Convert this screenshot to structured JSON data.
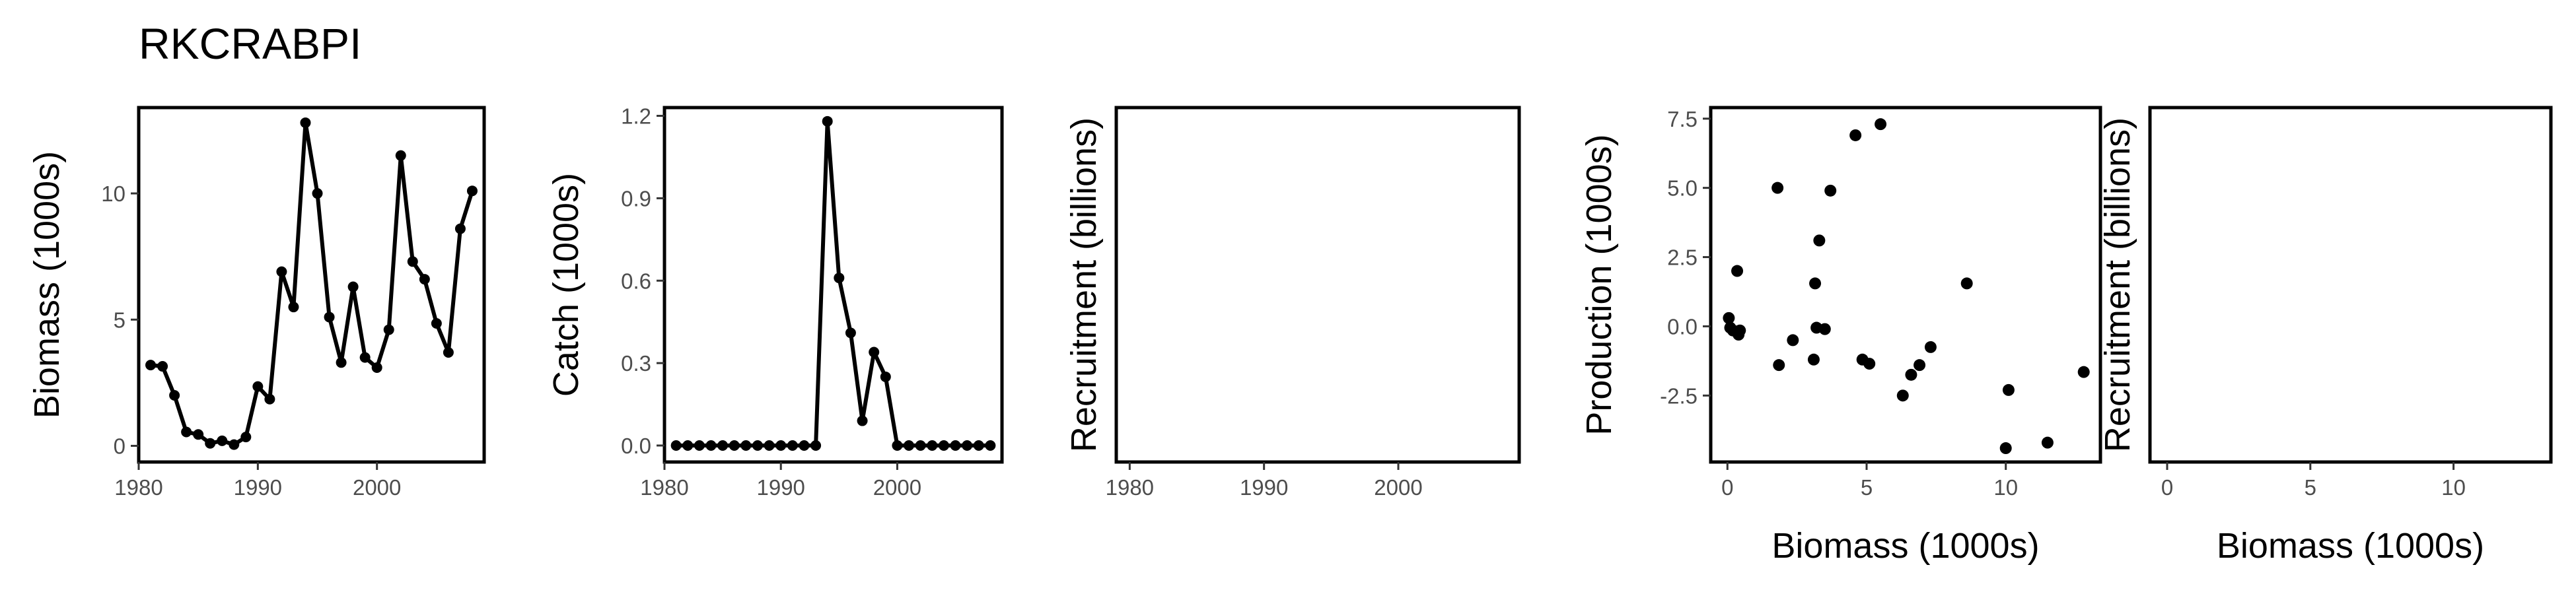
{
  "title": "RKCRABPI",
  "chart_data": [
    {
      "type": "line",
      "xlabel": "",
      "ylabel": "Biomass (1000s)",
      "xlim": [
        1980,
        2009
      ],
      "ylim": [
        -0.64,
        13.4
      ],
      "xticks": [
        1980,
        1990,
        2000
      ],
      "yticks": [
        0,
        5,
        10
      ],
      "x": [
        1981,
        1982,
        1983,
        1984,
        1985,
        1986,
        1987,
        1988,
        1989,
        1990,
        1991,
        1992,
        1993,
        1994,
        1995,
        1996,
        1997,
        1998,
        1999,
        2000,
        2001,
        2002,
        2003,
        2004,
        2005,
        2006,
        2007,
        2008
      ],
      "y": [
        3.2,
        3.15,
        2.0,
        0.55,
        0.45,
        0.1,
        0.2,
        0.05,
        0.35,
        2.35,
        1.85,
        6.9,
        5.5,
        12.8,
        10.0,
        5.1,
        3.3,
        6.3,
        3.5,
        3.1,
        4.6,
        11.5,
        7.3,
        6.6,
        4.85,
        3.7,
        8.6,
        10.1
      ],
      "markers": true
    },
    {
      "type": "line",
      "xlabel": "",
      "ylabel": "Catch (1000s)",
      "xlim": [
        1980,
        2009
      ],
      "ylim": [
        -0.06,
        1.23
      ],
      "xticks": [
        1980,
        1990,
        2000
      ],
      "yticks": [
        0.0,
        0.3,
        0.6,
        0.9,
        1.2
      ],
      "ytick_labels": [
        "0.0",
        "0.3",
        "0.6",
        "0.9",
        "1.2"
      ],
      "x": [
        1981,
        1982,
        1983,
        1984,
        1985,
        1986,
        1987,
        1988,
        1989,
        1990,
        1991,
        1992,
        1993,
        1994,
        1995,
        1996,
        1997,
        1998,
        1999,
        2000,
        2001,
        2002,
        2003,
        2004,
        2005,
        2006,
        2007,
        2008
      ],
      "y": [
        0,
        0,
        0,
        0,
        0,
        0,
        0,
        0,
        0,
        0,
        0,
        0,
        0,
        1.18,
        0.61,
        0.41,
        0.09,
        0.34,
        0.25,
        0,
        0,
        0,
        0,
        0,
        0,
        0,
        0,
        0
      ],
      "markers": true
    },
    {
      "type": "line",
      "xlabel": "",
      "ylabel": "Recruitment (billions)",
      "xlim": [
        1979,
        2009
      ],
      "ylim": [
        0,
        1
      ],
      "xticks": [
        1980,
        1990,
        2000
      ],
      "yticks": [],
      "x": [],
      "y": []
    },
    {
      "type": "scatter",
      "xlabel": "Biomass (1000s)",
      "ylabel": "Production (1000s)",
      "xlim": [
        -0.6,
        13.4
      ],
      "ylim": [
        -4.9,
        7.9
      ],
      "xticks": [
        0,
        5,
        10
      ],
      "yticks": [
        -2.5,
        0.0,
        2.5,
        5.0,
        7.5
      ],
      "ytick_labels": [
        "-2.5",
        "0.0",
        "2.5",
        "5.0",
        "7.5"
      ],
      "points": [
        [
          0.05,
          0.3
        ],
        [
          0.1,
          -0.05
        ],
        [
          0.2,
          -0.15
        ],
        [
          0.35,
          2.0
        ],
        [
          0.4,
          -0.3
        ],
        [
          0.45,
          -0.15
        ],
        [
          1.8,
          5.0
        ],
        [
          1.85,
          -1.4
        ],
        [
          2.35,
          -0.5
        ],
        [
          3.1,
          -1.2
        ],
        [
          3.15,
          1.55
        ],
        [
          3.2,
          -0.05
        ],
        [
          3.3,
          3.1
        ],
        [
          3.5,
          -0.1
        ],
        [
          3.7,
          4.9
        ],
        [
          4.6,
          6.9
        ],
        [
          4.85,
          -1.2
        ],
        [
          5.1,
          -1.35
        ],
        [
          5.5,
          7.3
        ],
        [
          6.3,
          -2.5
        ],
        [
          6.6,
          -1.75
        ],
        [
          6.9,
          -1.4
        ],
        [
          7.3,
          -0.75
        ],
        [
          8.6,
          1.55
        ],
        [
          10.0,
          -4.4
        ],
        [
          10.1,
          -2.3
        ],
        [
          11.5,
          -4.2
        ],
        [
          12.8,
          -1.65
        ]
      ]
    },
    {
      "type": "scatter",
      "xlabel": "Biomass (1000s)",
      "ylabel": "Recruitment (billions)",
      "xlim": [
        -0.6,
        13.4
      ],
      "ylim": [
        0,
        1
      ],
      "xticks": [
        0,
        5,
        10
      ],
      "yticks": [],
      "points": []
    }
  ]
}
